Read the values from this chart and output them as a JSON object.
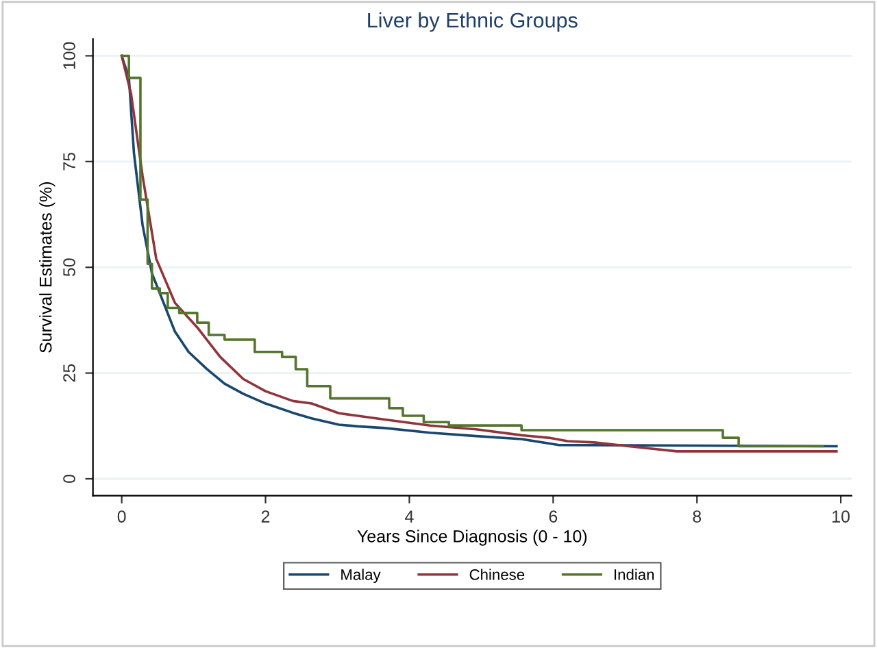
{
  "chart_data": {
    "type": "step",
    "title": "Liver by Ethnic Groups",
    "xlabel": "Years Since Diagnosis (0 - 10)",
    "ylabel": "Survival Estimates (%)",
    "xlim": [
      -0.4,
      10.15
    ],
    "ylim": [
      -4,
      104
    ],
    "xticks": [
      0,
      2,
      4,
      6,
      8,
      10
    ],
    "yticks": [
      0,
      25,
      50,
      75,
      100
    ],
    "grid": "y",
    "legend": "bottom",
    "series": [
      {
        "name": "Malay",
        "type": "line",
        "color": "#1a476f",
        "x": [
          0,
          0.1,
          0.17,
          0.29,
          0.42,
          0.61,
          0.74,
          0.93,
          1.18,
          1.43,
          1.69,
          2.0,
          2.38,
          2.64,
          3.02,
          3.28,
          3.66,
          4.29,
          4.93,
          5.56,
          6.07,
          9.94
        ],
        "values": [
          100,
          94.8,
          77,
          60,
          48.6,
          40.4,
          34.8,
          30,
          26,
          22.5,
          20.1,
          17.8,
          15.6,
          14.3,
          12.8,
          12.4,
          12.0,
          10.9,
          10.1,
          9.4,
          8.0,
          7.7
        ]
      },
      {
        "name": "Chinese",
        "type": "line",
        "color": "#90353b",
        "x": [
          0,
          0.13,
          0.29,
          0.48,
          0.74,
          1.05,
          1.37,
          1.69,
          2.0,
          2.38,
          2.64,
          3.02,
          3.28,
          3.66,
          4.29,
          4.93,
          5.56,
          5.94,
          6.2,
          6.57,
          7.21,
          7.72,
          9.94
        ],
        "values": [
          100,
          91,
          71.6,
          52,
          41.6,
          35.8,
          28.8,
          23.6,
          20.7,
          18.4,
          17.8,
          15.5,
          14.9,
          14.0,
          12.6,
          11.7,
          10.3,
          9.7,
          8.9,
          8.6,
          7.4,
          6.5,
          6.5
        ]
      },
      {
        "name": "Indian",
        "color": "#55752f",
        "x": [
          0,
          0.1,
          0.26,
          0.36,
          0.42,
          0.53,
          0.64,
          0.8,
          1.05,
          1.21,
          1.43,
          1.85,
          2.23,
          2.42,
          2.58,
          2.9,
          3.72,
          3.91,
          4.2,
          4.55,
          5.56,
          8.36,
          8.58,
          9.75
        ],
        "values": [
          100,
          94.8,
          66,
          50.8,
          45,
          43.9,
          40.4,
          39.2,
          36.9,
          34.0,
          32.9,
          30.0,
          28.8,
          25.9,
          21.9,
          19.0,
          16.7,
          14.9,
          13.4,
          12.6,
          11.5,
          9.7,
          7.7,
          7.7
        ]
      }
    ]
  }
}
